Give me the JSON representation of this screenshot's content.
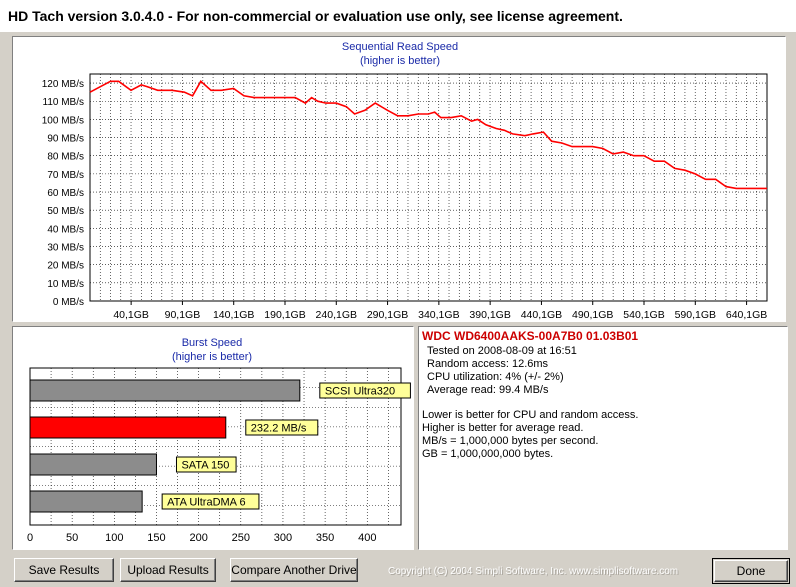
{
  "window": {
    "title": "HD Tach version 3.0.4.0  - For non-commercial or evaluation use only, see license agreement."
  },
  "sequential_chart": {
    "title": "Sequential Read Speed",
    "subtitle": "(higher is better)",
    "y_ticks": [
      "120 MB/s",
      "110 MB/s",
      "100 MB/s",
      "90 MB/s",
      "80 MB/s",
      "70 MB/s",
      "60 MB/s",
      "50 MB/s",
      "40 MB/s",
      "30 MB/s",
      "20 MB/s",
      "10 MB/s",
      "0 MB/s"
    ],
    "x_ticks": [
      "40,1GB",
      "90,1GB",
      "140,1GB",
      "190,1GB",
      "240,1GB",
      "290,1GB",
      "340,1GB",
      "390,1GB",
      "440,1GB",
      "490,1GB",
      "540,1GB",
      "590,1GB",
      "640,1GB"
    ]
  },
  "burst_chart": {
    "title": "Burst Speed",
    "subtitle": "(higher is better)",
    "x_ticks": [
      "0",
      "50",
      "100",
      "150",
      "200",
      "250",
      "300",
      "350",
      "400"
    ]
  },
  "chart_data": [
    {
      "type": "line",
      "title": "Sequential Read Speed",
      "subtitle": "(higher is better)",
      "xlabel": "",
      "ylabel": "",
      "ylim": [
        0,
        125
      ],
      "xlim": [
        0,
        660
      ],
      "grid": true,
      "series": [
        {
          "color": "#ff0000",
          "x": [
            0,
            10,
            20,
            28,
            40,
            50,
            56,
            66,
            80,
            92,
            100,
            108,
            118,
            128,
            140,
            150,
            160,
            170,
            180,
            190,
            200,
            210,
            216,
            222,
            230,
            240,
            250,
            258,
            268,
            278,
            290,
            300,
            310,
            320,
            330,
            336,
            342,
            352,
            362,
            372,
            378,
            386,
            396,
            404,
            412,
            424,
            432,
            442,
            450,
            460,
            470,
            480,
            490,
            500,
            510,
            520,
            530,
            540,
            550,
            560,
            570,
            580,
            590,
            600,
            610,
            620,
            630,
            640,
            650,
            660
          ],
          "y": [
            115,
            118,
            121,
            121,
            116,
            119,
            118,
            116,
            116,
            115,
            113,
            121,
            116,
            116,
            117,
            113,
            112,
            112,
            112,
            112,
            112,
            109,
            112,
            110,
            109,
            109,
            107,
            103,
            105,
            109,
            105,
            102,
            102,
            103,
            103,
            104,
            101,
            101,
            102,
            99,
            100,
            97,
            95,
            94,
            92,
            91,
            92,
            93,
            88,
            87,
            85,
            85,
            85,
            84,
            81,
            82,
            80,
            80,
            77,
            77,
            73,
            72,
            70,
            67,
            67,
            63,
            62,
            62,
            62,
            62
          ]
        }
      ]
    },
    {
      "type": "bar",
      "title": "Burst Speed",
      "subtitle": "(higher is better)",
      "xlim": [
        0,
        440
      ],
      "grid": true,
      "categories": [
        "SCSI Ultra320",
        "232.2 MB/s",
        "SATA 150",
        "ATA UltraDMA 6"
      ],
      "values": [
        320,
        232.2,
        150,
        133
      ],
      "colors": [
        "#8c8c8c",
        "#ff0000",
        "#8c8c8c",
        "#8c8c8c"
      ]
    }
  ],
  "drive_info": {
    "name": "WDC WD6400AAKS-00A7B0 01.03B01",
    "tested_on": "Tested on 2008-08-09 at 16:51",
    "random_access": "Random access: 12.6ms",
    "cpu_utilization": "CPU utilization: 4% (+/- 2%)",
    "average_read": "Average read: 99.4 MB/s",
    "note1": "Lower is better for CPU and random access.",
    "note2": "Higher is better for average read.",
    "note3": "MB/s = 1,000,000 bytes per second.",
    "note4": "GB = 1,000,000,000 bytes."
  },
  "buttons": {
    "save": "Save Results",
    "upload": "Upload Results",
    "compare": "Compare Another Drive",
    "done": "Done"
  },
  "footer": {
    "copyright": "Copyright (C) 2004 Simpli Software, Inc. www.simplisoftware.com"
  }
}
